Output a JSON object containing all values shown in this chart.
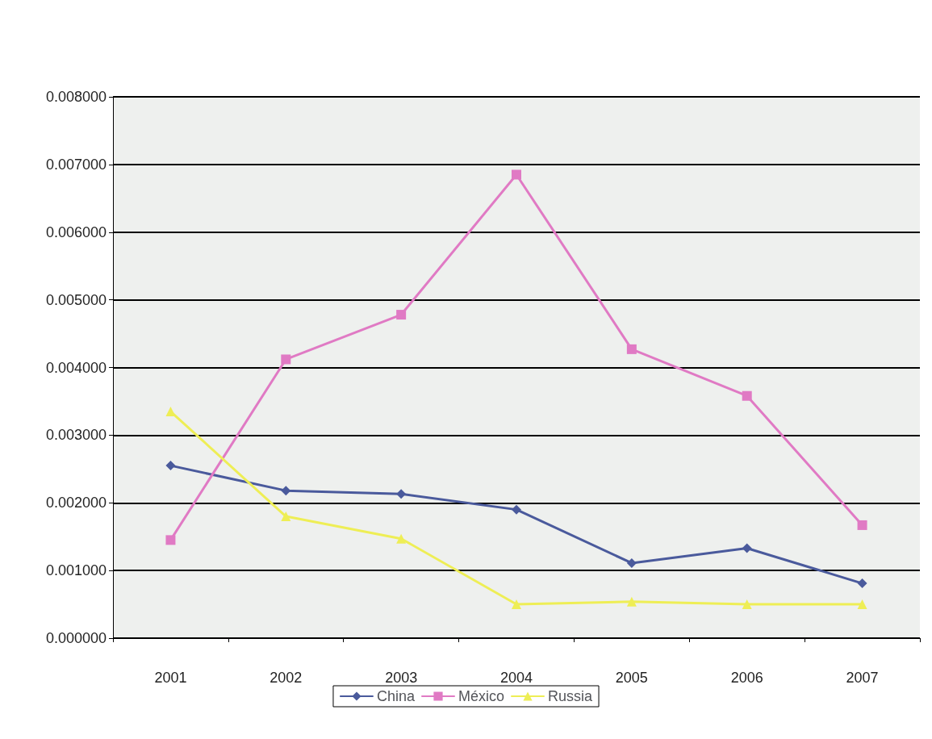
{
  "chart_data": {
    "type": "line",
    "categories": [
      "2001",
      "2002",
      "2003",
      "2004",
      "2005",
      "2006",
      "2007"
    ],
    "series": [
      {
        "name": "China",
        "color": "#4a5a9c",
        "marker": "diamond",
        "values": [
          0.00255,
          0.00218,
          0.00213,
          0.0019,
          0.00111,
          0.00133,
          0.00081
        ]
      },
      {
        "name": "México",
        "color": "#e07ac4",
        "marker": "square",
        "values": [
          0.00145,
          0.00412,
          0.00478,
          0.00685,
          0.00427,
          0.00358,
          0.00167
        ]
      },
      {
        "name": "Russia",
        "color": "#eeee55",
        "marker": "triangle",
        "values": [
          0.00335,
          0.0018,
          0.00147,
          0.0005,
          0.00054,
          0.0005,
          0.0005
        ]
      }
    ],
    "ylim": [
      0,
      0.008
    ],
    "yticks": [
      {
        "value": 0,
        "label": "0.000000"
      },
      {
        "value": 0.001,
        "label": "0.001000"
      },
      {
        "value": 0.002,
        "label": "0.002000"
      },
      {
        "value": 0.003,
        "label": "0.003000"
      },
      {
        "value": 0.004,
        "label": "0.004000"
      },
      {
        "value": 0.005,
        "label": "0.005000"
      },
      {
        "value": 0.006,
        "label": "0.006000"
      },
      {
        "value": 0.007,
        "label": "0.007000"
      },
      {
        "value": 0.008,
        "label": "0.008000"
      }
    ],
    "grid": "y",
    "legend": "bottom",
    "line_style": "solid"
  }
}
